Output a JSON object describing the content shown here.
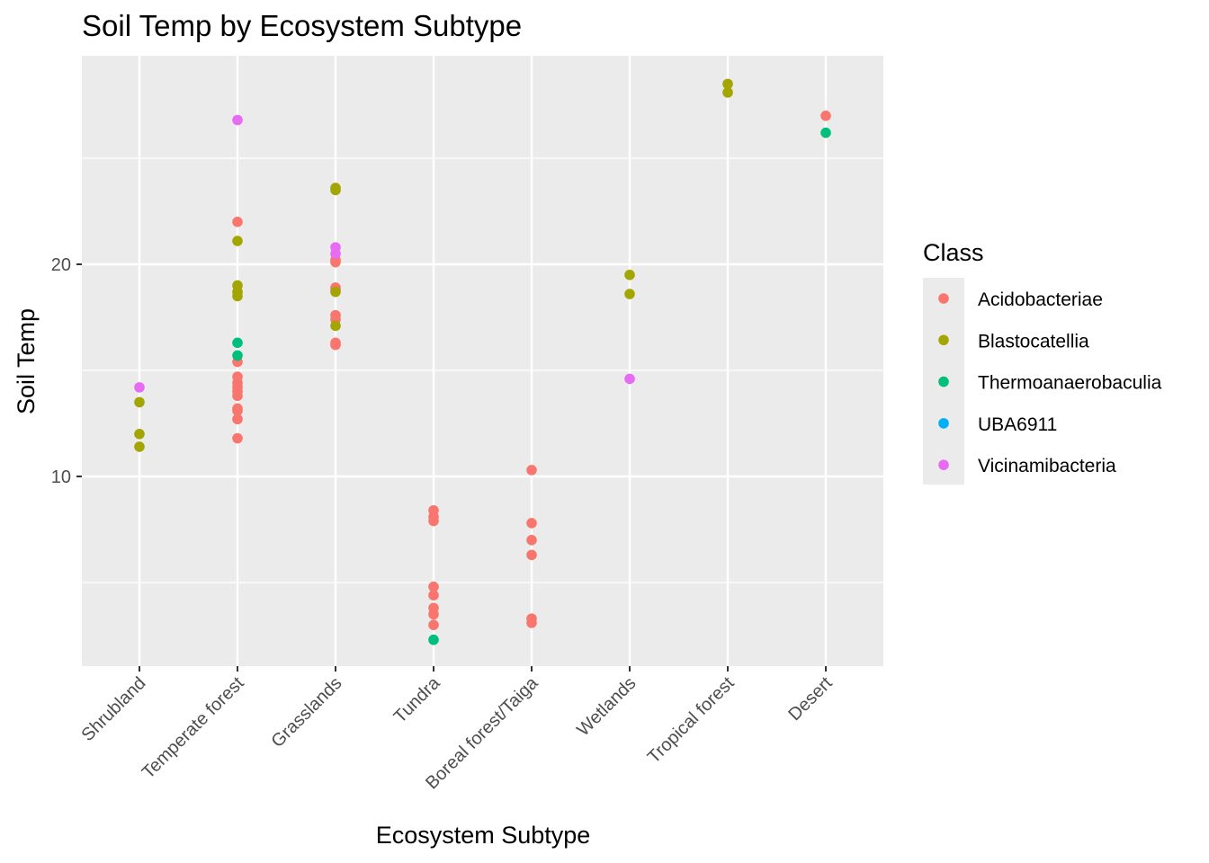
{
  "chart_data": {
    "type": "scatter",
    "title": "Soil Temp by Ecosystem Subtype",
    "xlabel": "Ecosystem Subtype",
    "ylabel": "Soil Temp",
    "categories": [
      "Shrubland",
      "Temperate forest",
      "Grasslands",
      "Tundra",
      "Boreal forest/Taiga",
      "Wetlands",
      "Tropical forest",
      "Desert"
    ],
    "ylim": [
      1.2,
      30.0
    ],
    "y_ticks": [
      10,
      20
    ],
    "y_minor_ticks": [
      5,
      15,
      25
    ],
    "grid": true,
    "legend": {
      "title": "Class",
      "position": "right"
    },
    "colors": {
      "Acidobacteriae": "#F8766D",
      "Blastocatellia": "#A3A500",
      "Thermoanaerobaculia": "#00BF7D",
      "UBA6911": "#00B0F6",
      "Vicinamibacteria": "#E76BF3"
    },
    "series": [
      {
        "name": "Acidobacteriae",
        "points": [
          [
            "Temperate forest",
            22.0
          ],
          [
            "Temperate forest",
            15.4
          ],
          [
            "Temperate forest",
            14.7
          ],
          [
            "Temperate forest",
            14.4
          ],
          [
            "Temperate forest",
            14.2
          ],
          [
            "Temperate forest",
            14.0
          ],
          [
            "Temperate forest",
            13.8
          ],
          [
            "Temperate forest",
            13.2
          ],
          [
            "Temperate forest",
            13.1
          ],
          [
            "Temperate forest",
            12.7
          ],
          [
            "Temperate forest",
            11.8
          ],
          [
            "Grasslands",
            20.2
          ],
          [
            "Grasslands",
            20.1
          ],
          [
            "Grasslands",
            18.9
          ],
          [
            "Grasslands",
            18.8
          ],
          [
            "Grasslands",
            17.6
          ],
          [
            "Grasslands",
            17.4
          ],
          [
            "Grasslands",
            16.3
          ],
          [
            "Grasslands",
            16.2
          ],
          [
            "Tundra",
            8.4
          ],
          [
            "Tundra",
            8.1
          ],
          [
            "Tundra",
            7.9
          ],
          [
            "Tundra",
            4.8
          ],
          [
            "Tundra",
            4.4
          ],
          [
            "Tundra",
            3.8
          ],
          [
            "Tundra",
            3.5
          ],
          [
            "Tundra",
            3.0
          ],
          [
            "Boreal forest/Taiga",
            10.3
          ],
          [
            "Boreal forest/Taiga",
            7.8
          ],
          [
            "Boreal forest/Taiga",
            7.0
          ],
          [
            "Boreal forest/Taiga",
            6.3
          ],
          [
            "Boreal forest/Taiga",
            3.3
          ],
          [
            "Boreal forest/Taiga",
            3.1
          ],
          [
            "Desert",
            27.0
          ]
        ]
      },
      {
        "name": "Blastocatellia",
        "points": [
          [
            "Shrubland",
            13.5
          ],
          [
            "Shrubland",
            12.0
          ],
          [
            "Shrubland",
            11.4
          ],
          [
            "Temperate forest",
            21.1
          ],
          [
            "Temperate forest",
            19.0
          ],
          [
            "Temperate forest",
            18.7
          ],
          [
            "Temperate forest",
            18.5
          ],
          [
            "Grasslands",
            23.6
          ],
          [
            "Grasslands",
            23.5
          ],
          [
            "Grasslands",
            18.7
          ],
          [
            "Grasslands",
            17.1
          ],
          [
            "Wetlands",
            19.5
          ],
          [
            "Wetlands",
            18.6
          ],
          [
            "Tropical forest",
            28.5
          ],
          [
            "Tropical forest",
            28.1
          ]
        ]
      },
      {
        "name": "Thermoanaerobaculia",
        "points": [
          [
            "Temperate forest",
            16.3
          ],
          [
            "Temperate forest",
            15.7
          ],
          [
            "Tundra",
            2.3
          ],
          [
            "Desert",
            26.2
          ]
        ]
      },
      {
        "name": "UBA6911",
        "points": []
      },
      {
        "name": "Vicinamibacteria",
        "points": [
          [
            "Shrubland",
            14.2
          ],
          [
            "Temperate forest",
            26.8
          ],
          [
            "Grasslands",
            20.8
          ],
          [
            "Grasslands",
            20.5
          ],
          [
            "Wetlands",
            14.6
          ]
        ]
      }
    ]
  }
}
